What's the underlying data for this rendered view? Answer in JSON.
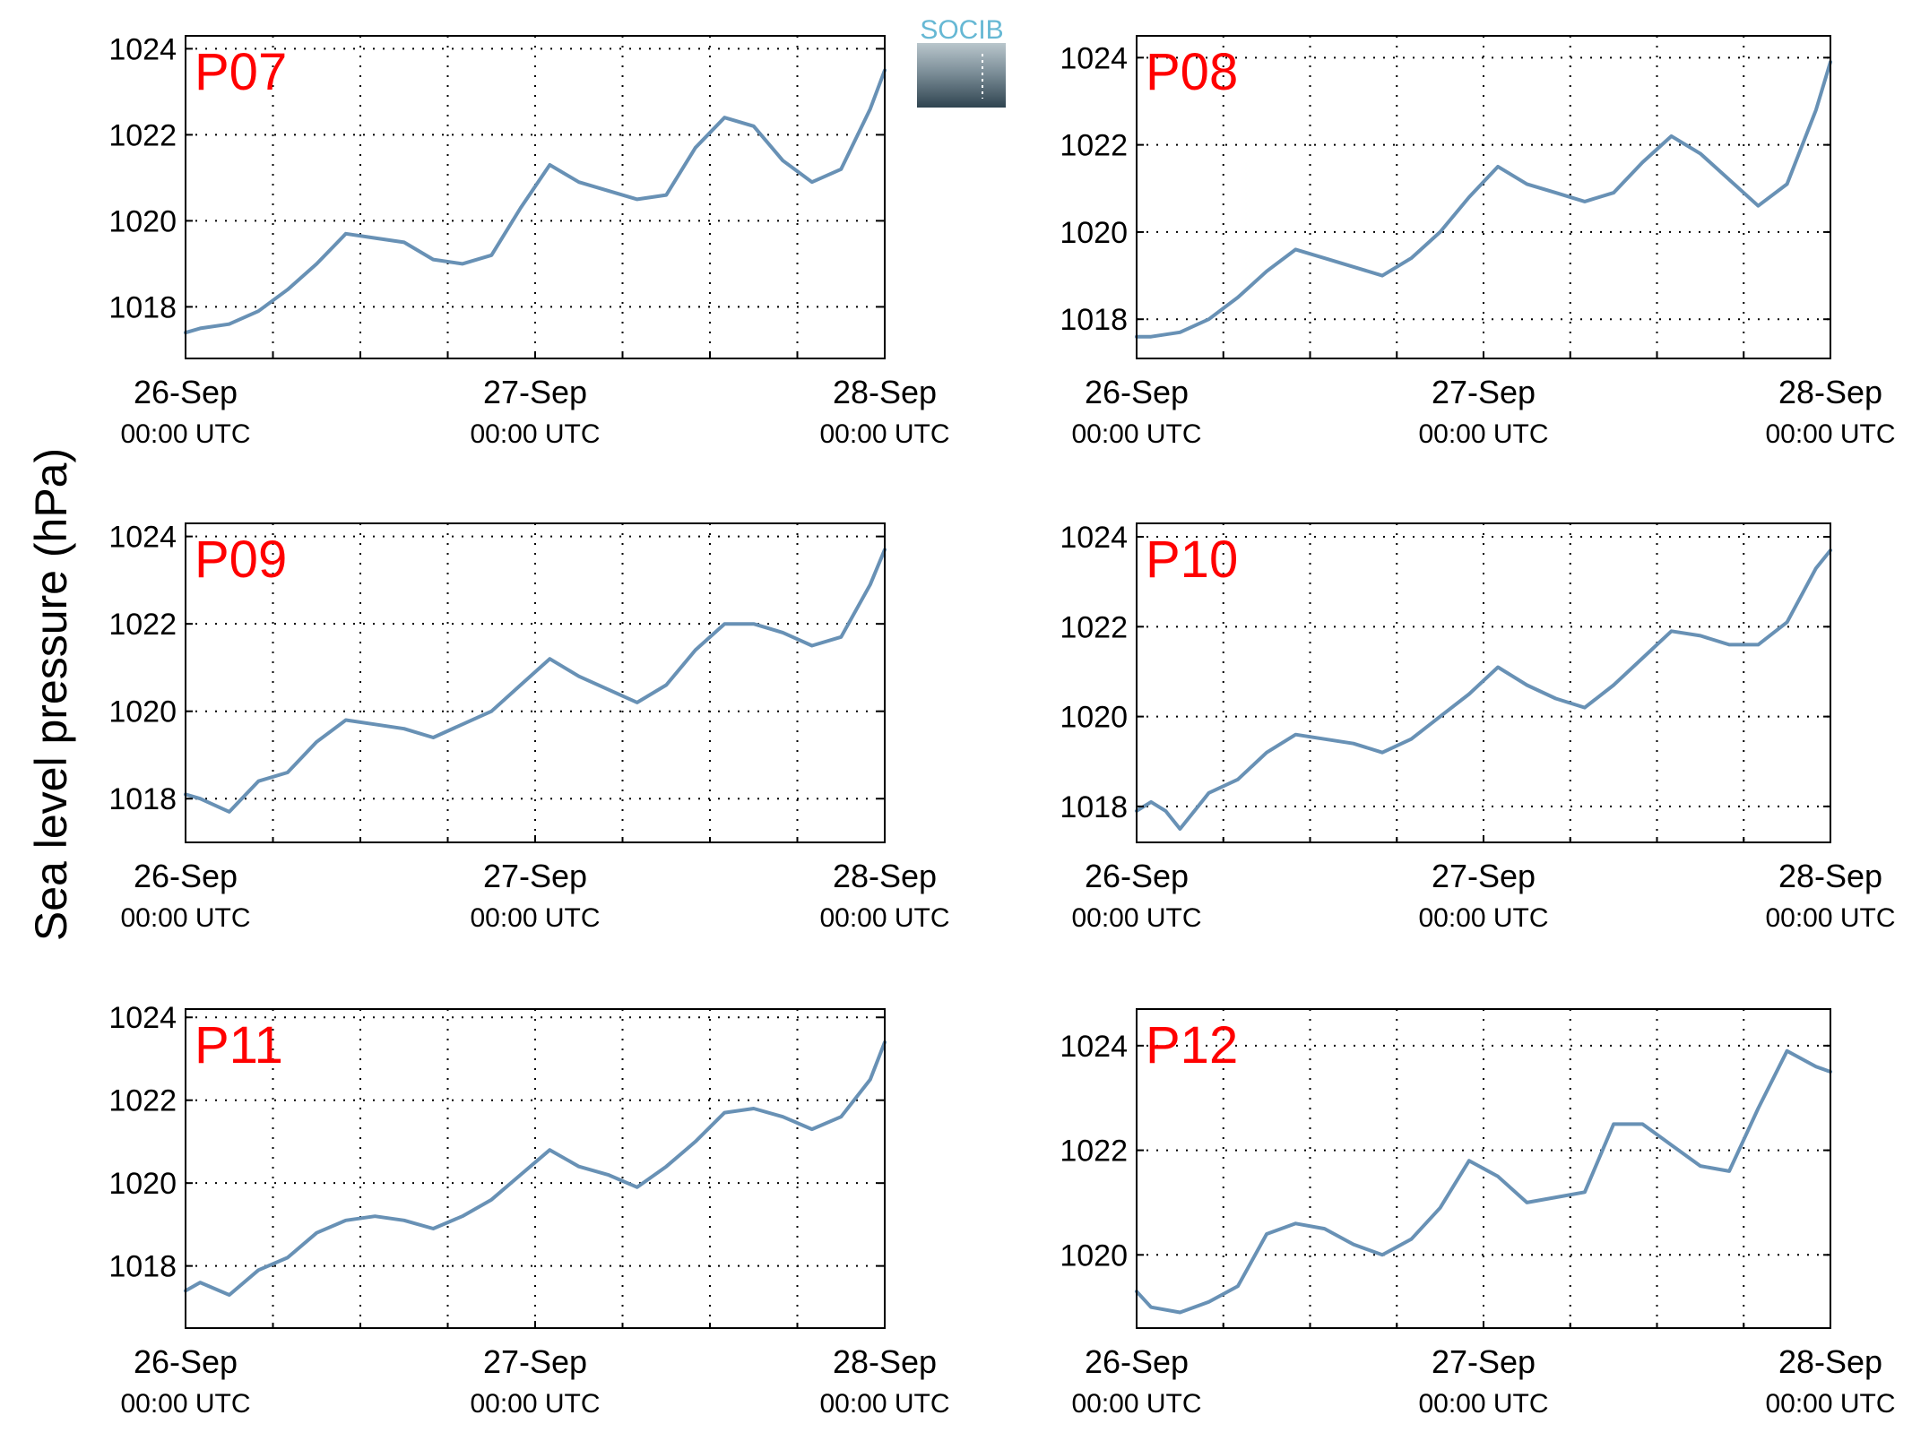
{
  "logo": {
    "text": "SOCIB"
  },
  "ylabel": "Sea level pressure (hPa)",
  "colors": {
    "line": "#6891b5",
    "panel_label": "#ff0000",
    "grid": "#000000",
    "axes": "#000000"
  },
  "chart_data": [
    {
      "type": "line",
      "title": "P07",
      "ylim": [
        1016.8,
        1024.3
      ],
      "yticks": [
        1018,
        1020,
        1022,
        1024
      ],
      "xlim": [
        "2016-09-26 00:00",
        "2016-09-28 00:00"
      ],
      "xticks": [
        {
          "date": "26-Sep",
          "time": "00:00 UTC"
        },
        {
          "date": "27-Sep",
          "time": "00:00 UTC"
        },
        {
          "date": "28-Sep",
          "time": "00:00 UTC"
        }
      ],
      "grid": true,
      "series": [
        {
          "x": [
            "2016-09-26 00:00",
            "2016-09-26 01:00",
            "2016-09-26 03:00",
            "2016-09-26 05:00",
            "2016-09-26 07:00",
            "2016-09-26 09:00",
            "2016-09-26 11:00",
            "2016-09-26 13:00",
            "2016-09-26 15:00",
            "2016-09-26 17:00",
            "2016-09-26 19:00",
            "2016-09-26 21:00",
            "2016-09-26 23:00",
            "2016-09-27 01:00",
            "2016-09-27 03:00",
            "2016-09-27 05:00",
            "2016-09-27 07:00",
            "2016-09-27 09:00",
            "2016-09-27 11:00",
            "2016-09-27 13:00",
            "2016-09-27 15:00",
            "2016-09-27 17:00",
            "2016-09-27 19:00",
            "2016-09-27 21:00",
            "2016-09-27 23:00",
            "2016-09-28 00:00"
          ],
          "y": [
            1017.4,
            1017.5,
            1017.6,
            1017.9,
            1018.4,
            1019.0,
            1019.7,
            1019.6,
            1019.5,
            1019.1,
            1019.0,
            1019.2,
            1020.3,
            1021.3,
            1020.9,
            1020.7,
            1020.5,
            1020.6,
            1021.7,
            1022.4,
            1022.2,
            1021.4,
            1020.9,
            1021.2,
            1022.6,
            1023.5
          ]
        }
      ]
    },
    {
      "type": "line",
      "title": "P08",
      "ylim": [
        1017.1,
        1024.5
      ],
      "yticks": [
        1018,
        1020,
        1022,
        1024
      ],
      "xlim": [
        "2016-09-26 00:00",
        "2016-09-28 00:00"
      ],
      "xticks": [
        {
          "date": "26-Sep",
          "time": "00:00 UTC"
        },
        {
          "date": "27-Sep",
          "time": "00:00 UTC"
        },
        {
          "date": "28-Sep",
          "time": "00:00 UTC"
        }
      ],
      "grid": true,
      "series": [
        {
          "x": [
            "2016-09-26 00:00",
            "2016-09-26 01:00",
            "2016-09-26 03:00",
            "2016-09-26 05:00",
            "2016-09-26 07:00",
            "2016-09-26 09:00",
            "2016-09-26 11:00",
            "2016-09-26 13:00",
            "2016-09-26 15:00",
            "2016-09-26 17:00",
            "2016-09-26 19:00",
            "2016-09-26 21:00",
            "2016-09-26 23:00",
            "2016-09-27 01:00",
            "2016-09-27 03:00",
            "2016-09-27 05:00",
            "2016-09-27 07:00",
            "2016-09-27 09:00",
            "2016-09-27 11:00",
            "2016-09-27 13:00",
            "2016-09-27 15:00",
            "2016-09-27 17:00",
            "2016-09-27 19:00",
            "2016-09-27 21:00",
            "2016-09-27 23:00",
            "2016-09-28 00:00"
          ],
          "y": [
            1017.6,
            1017.6,
            1017.7,
            1018.0,
            1018.5,
            1019.1,
            1019.6,
            1019.4,
            1019.2,
            1019.0,
            1019.4,
            1020.0,
            1020.8,
            1021.5,
            1021.1,
            1020.9,
            1020.7,
            1020.9,
            1021.6,
            1022.2,
            1021.8,
            1021.2,
            1020.6,
            1021.1,
            1022.8,
            1023.9
          ]
        }
      ]
    },
    {
      "type": "line",
      "title": "P09",
      "ylim": [
        1017.0,
        1024.3
      ],
      "yticks": [
        1018,
        1020,
        1022,
        1024
      ],
      "xlim": [
        "2016-09-26 00:00",
        "2016-09-28 00:00"
      ],
      "xticks": [
        {
          "date": "26-Sep",
          "time": "00:00 UTC"
        },
        {
          "date": "27-Sep",
          "time": "00:00 UTC"
        },
        {
          "date": "28-Sep",
          "time": "00:00 UTC"
        }
      ],
      "grid": true,
      "series": [
        {
          "x": [
            "2016-09-26 00:00",
            "2016-09-26 01:00",
            "2016-09-26 03:00",
            "2016-09-26 05:00",
            "2016-09-26 07:00",
            "2016-09-26 09:00",
            "2016-09-26 11:00",
            "2016-09-26 13:00",
            "2016-09-26 15:00",
            "2016-09-26 17:00",
            "2016-09-26 19:00",
            "2016-09-26 21:00",
            "2016-09-26 23:00",
            "2016-09-27 01:00",
            "2016-09-27 03:00",
            "2016-09-27 05:00",
            "2016-09-27 07:00",
            "2016-09-27 09:00",
            "2016-09-27 11:00",
            "2016-09-27 13:00",
            "2016-09-27 15:00",
            "2016-09-27 17:00",
            "2016-09-27 19:00",
            "2016-09-27 21:00",
            "2016-09-27 23:00",
            "2016-09-28 00:00"
          ],
          "y": [
            1018.1,
            1018.0,
            1017.7,
            1018.4,
            1018.6,
            1019.3,
            1019.8,
            1019.7,
            1019.6,
            1019.4,
            1019.7,
            1020.0,
            1020.6,
            1021.2,
            1020.8,
            1020.5,
            1020.2,
            1020.6,
            1021.4,
            1022.0,
            1022.0,
            1021.8,
            1021.5,
            1021.7,
            1022.9,
            1023.7
          ]
        }
      ]
    },
    {
      "type": "line",
      "title": "P10",
      "ylim": [
        1017.2,
        1024.3
      ],
      "yticks": [
        1018,
        1020,
        1022,
        1024
      ],
      "xlim": [
        "2016-09-26 00:00",
        "2016-09-28 00:00"
      ],
      "xticks": [
        {
          "date": "26-Sep",
          "time": "00:00 UTC"
        },
        {
          "date": "27-Sep",
          "time": "00:00 UTC"
        },
        {
          "date": "28-Sep",
          "time": "00:00 UTC"
        }
      ],
      "grid": true,
      "series": [
        {
          "x": [
            "2016-09-26 00:00",
            "2016-09-26 01:00",
            "2016-09-26 02:00",
            "2016-09-26 03:00",
            "2016-09-26 05:00",
            "2016-09-26 07:00",
            "2016-09-26 09:00",
            "2016-09-26 11:00",
            "2016-09-26 13:00",
            "2016-09-26 15:00",
            "2016-09-26 17:00",
            "2016-09-26 19:00",
            "2016-09-26 21:00",
            "2016-09-26 23:00",
            "2016-09-27 01:00",
            "2016-09-27 03:00",
            "2016-09-27 05:00",
            "2016-09-27 07:00",
            "2016-09-27 09:00",
            "2016-09-27 11:00",
            "2016-09-27 13:00",
            "2016-09-27 15:00",
            "2016-09-27 17:00",
            "2016-09-27 19:00",
            "2016-09-27 21:00",
            "2016-09-27 23:00",
            "2016-09-28 00:00"
          ],
          "y": [
            1017.9,
            1018.1,
            1017.9,
            1017.5,
            1018.3,
            1018.6,
            1019.2,
            1019.6,
            1019.5,
            1019.4,
            1019.2,
            1019.5,
            1020.0,
            1020.5,
            1021.1,
            1020.7,
            1020.4,
            1020.2,
            1020.7,
            1021.3,
            1021.9,
            1021.8,
            1021.6,
            1021.6,
            1022.1,
            1023.3,
            1023.7
          ]
        }
      ]
    },
    {
      "type": "line",
      "title": "P11",
      "ylim": [
        1016.5,
        1024.2
      ],
      "yticks": [
        1018,
        1020,
        1022,
        1024
      ],
      "xlim": [
        "2016-09-26 00:00",
        "2016-09-28 00:00"
      ],
      "xticks": [
        {
          "date": "26-Sep",
          "time": "00:00 UTC"
        },
        {
          "date": "27-Sep",
          "time": "00:00 UTC"
        },
        {
          "date": "28-Sep",
          "time": "00:00 UTC"
        }
      ],
      "grid": true,
      "series": [
        {
          "x": [
            "2016-09-26 00:00",
            "2016-09-26 01:00",
            "2016-09-26 03:00",
            "2016-09-26 05:00",
            "2016-09-26 07:00",
            "2016-09-26 09:00",
            "2016-09-26 11:00",
            "2016-09-26 13:00",
            "2016-09-26 15:00",
            "2016-09-26 17:00",
            "2016-09-26 19:00",
            "2016-09-26 21:00",
            "2016-09-26 23:00",
            "2016-09-27 01:00",
            "2016-09-27 03:00",
            "2016-09-27 05:00",
            "2016-09-27 07:00",
            "2016-09-27 09:00",
            "2016-09-27 11:00",
            "2016-09-27 13:00",
            "2016-09-27 15:00",
            "2016-09-27 17:00",
            "2016-09-27 19:00",
            "2016-09-27 21:00",
            "2016-09-27 23:00",
            "2016-09-28 00:00"
          ],
          "y": [
            1017.4,
            1017.6,
            1017.3,
            1017.9,
            1018.2,
            1018.8,
            1019.1,
            1019.2,
            1019.1,
            1018.9,
            1019.2,
            1019.6,
            1020.2,
            1020.8,
            1020.4,
            1020.2,
            1019.9,
            1020.4,
            1021.0,
            1021.7,
            1021.8,
            1021.6,
            1021.3,
            1021.6,
            1022.5,
            1023.4
          ]
        }
      ]
    },
    {
      "type": "line",
      "title": "P12",
      "ylim": [
        1018.6,
        1024.7
      ],
      "yticks": [
        1020,
        1022,
        1024
      ],
      "xlim": [
        "2016-09-26 00:00",
        "2016-09-28 00:00"
      ],
      "xticks": [
        {
          "date": "26-Sep",
          "time": "00:00 UTC"
        },
        {
          "date": "27-Sep",
          "time": "00:00 UTC"
        },
        {
          "date": "28-Sep",
          "time": "00:00 UTC"
        }
      ],
      "grid": true,
      "series": [
        {
          "x": [
            "2016-09-26 00:00",
            "2016-09-26 01:00",
            "2016-09-26 03:00",
            "2016-09-26 05:00",
            "2016-09-26 07:00",
            "2016-09-26 09:00",
            "2016-09-26 11:00",
            "2016-09-26 13:00",
            "2016-09-26 15:00",
            "2016-09-26 17:00",
            "2016-09-26 19:00",
            "2016-09-26 21:00",
            "2016-09-26 23:00",
            "2016-09-27 01:00",
            "2016-09-27 03:00",
            "2016-09-27 05:00",
            "2016-09-27 07:00",
            "2016-09-27 09:00",
            "2016-09-27 11:00",
            "2016-09-27 13:00",
            "2016-09-27 15:00",
            "2016-09-27 17:00",
            "2016-09-27 19:00",
            "2016-09-27 21:00",
            "2016-09-27 23:00",
            "2016-09-28 00:00"
          ],
          "y": [
            1019.3,
            1019.0,
            1018.9,
            1019.1,
            1019.4,
            1020.4,
            1020.6,
            1020.5,
            1020.2,
            1020.0,
            1020.3,
            1020.9,
            1021.8,
            1021.5,
            1021.0,
            1021.1,
            1021.2,
            1022.5,
            1022.5,
            1022.1,
            1021.7,
            1021.6,
            1022.8,
            1023.9,
            1023.6,
            1023.5
          ]
        }
      ]
    }
  ]
}
